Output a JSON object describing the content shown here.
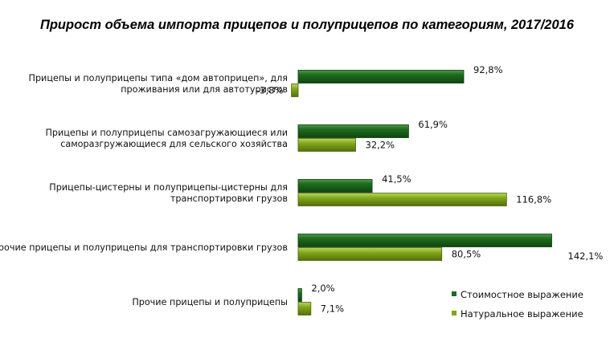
{
  "chart_data": {
    "type": "bar",
    "orientation": "horizontal",
    "title": "Прирост объема импорта прицепов и полуприцепов по категориям, 2017/2016",
    "categories": [
      [
        "Прицепы и полуприцепы типа «дом автоприцеп», для",
        "проживания или для автотуристов"
      ],
      [
        "Прицепы и полуприцепы самозагружающиеся или",
        "саморазгружающиеся для сельского хозяйства"
      ],
      [
        "Прицепы-цистерны и полуприцепы-цистерны для",
        "транспортировки грузов"
      ],
      [
        "Прочие прицепы и полуприцепы для транспортировки грузов"
      ],
      [
        "Прочие прицепы и полуприцепы"
      ]
    ],
    "series": [
      {
        "name": "Стоимостное выражение",
        "values": [
          92.8,
          61.9,
          41.5,
          142.1,
          2.0
        ],
        "labels": [
          "92,8%",
          "61,9%",
          "41,5%",
          "142,1%",
          "2,0%"
        ],
        "color": "#1f6b1f"
      },
      {
        "name": "Натуральное выражение",
        "values": [
          -3.8,
          32.2,
          116.8,
          80.5,
          7.1
        ],
        "labels": [
          "-3,8%",
          "32,2%",
          "116,8%",
          "80,5%",
          "7,1%"
        ],
        "color": "#7fa51a"
      }
    ],
    "legend_position": "bottom-right",
    "grid": false
  }
}
